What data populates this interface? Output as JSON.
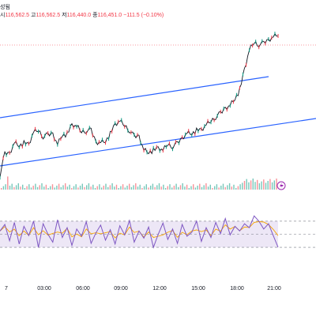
{
  "header": {
    "symbol_suffix": "성됨",
    "open_label": "시",
    "open": "116,562.5",
    "high_label": "고",
    "high": "116,562.5",
    "low_label": "저",
    "low": "116,440.0",
    "close_label": "종",
    "close": "116,451.0",
    "change": "−111.5 (−0.10%)"
  },
  "colors": {
    "price_line": "#131722",
    "up_candle": "#089981",
    "down_candle": "#f23645",
    "trendline": "#2962ff",
    "rsi_line": "#7e57c2",
    "rsi_signal": "#f7a600",
    "rsi_band": "#ede7f6",
    "price_level": "#f23645"
  },
  "icons": {
    "alert": "lightning-alert-icon"
  },
  "chart_data": [
    {
      "type": "line",
      "series": [
        {
          "values": [
            -13,
            39,
            40,
            67,
            60,
            65,
            61,
            92,
            97,
            82,
            85,
            89,
            63,
            87,
            86,
            110,
            106,
            94,
            96,
            97,
            68,
            68,
            71,
            88,
            111,
            119,
            109,
            97,
            81,
            83,
            49,
            44,
            47,
            53,
            47,
            63,
            57,
            64,
            78,
            91,
            90,
            96,
            97,
            110,
            120,
            130,
            138,
            152,
            159,
            176,
            195,
            247,
            294,
            314,
            308,
            311,
            320,
            328,
            334
          ]
        }
      ],
      "x_ticks": [
        "7",
        "03:00",
        "06:00",
        "09:00",
        "12:00",
        "15:00",
        "18:00",
        "21:00"
      ]
    },
    {
      "type": "line",
      "series": [
        {
          "values": [
            55,
            65,
            40,
            68,
            35,
            62,
            48,
            70,
            30,
            66,
            50,
            38,
            72,
            45,
            60,
            33,
            58,
            47,
            69,
            36,
            52,
            64,
            41,
            57,
            35,
            63,
            49,
            71,
            38,
            55,
            44,
            61,
            30,
            50,
            67,
            42,
            58,
            36,
            65,
            47,
            53,
            70,
            39,
            60,
            45,
            68,
            51,
            74,
            49,
            62,
            55,
            66,
            60,
            78,
            70,
            58,
            66,
            48,
            30
          ]
        }
      ],
      "levels": [
        70,
        50,
        30
      ]
    }
  ]
}
